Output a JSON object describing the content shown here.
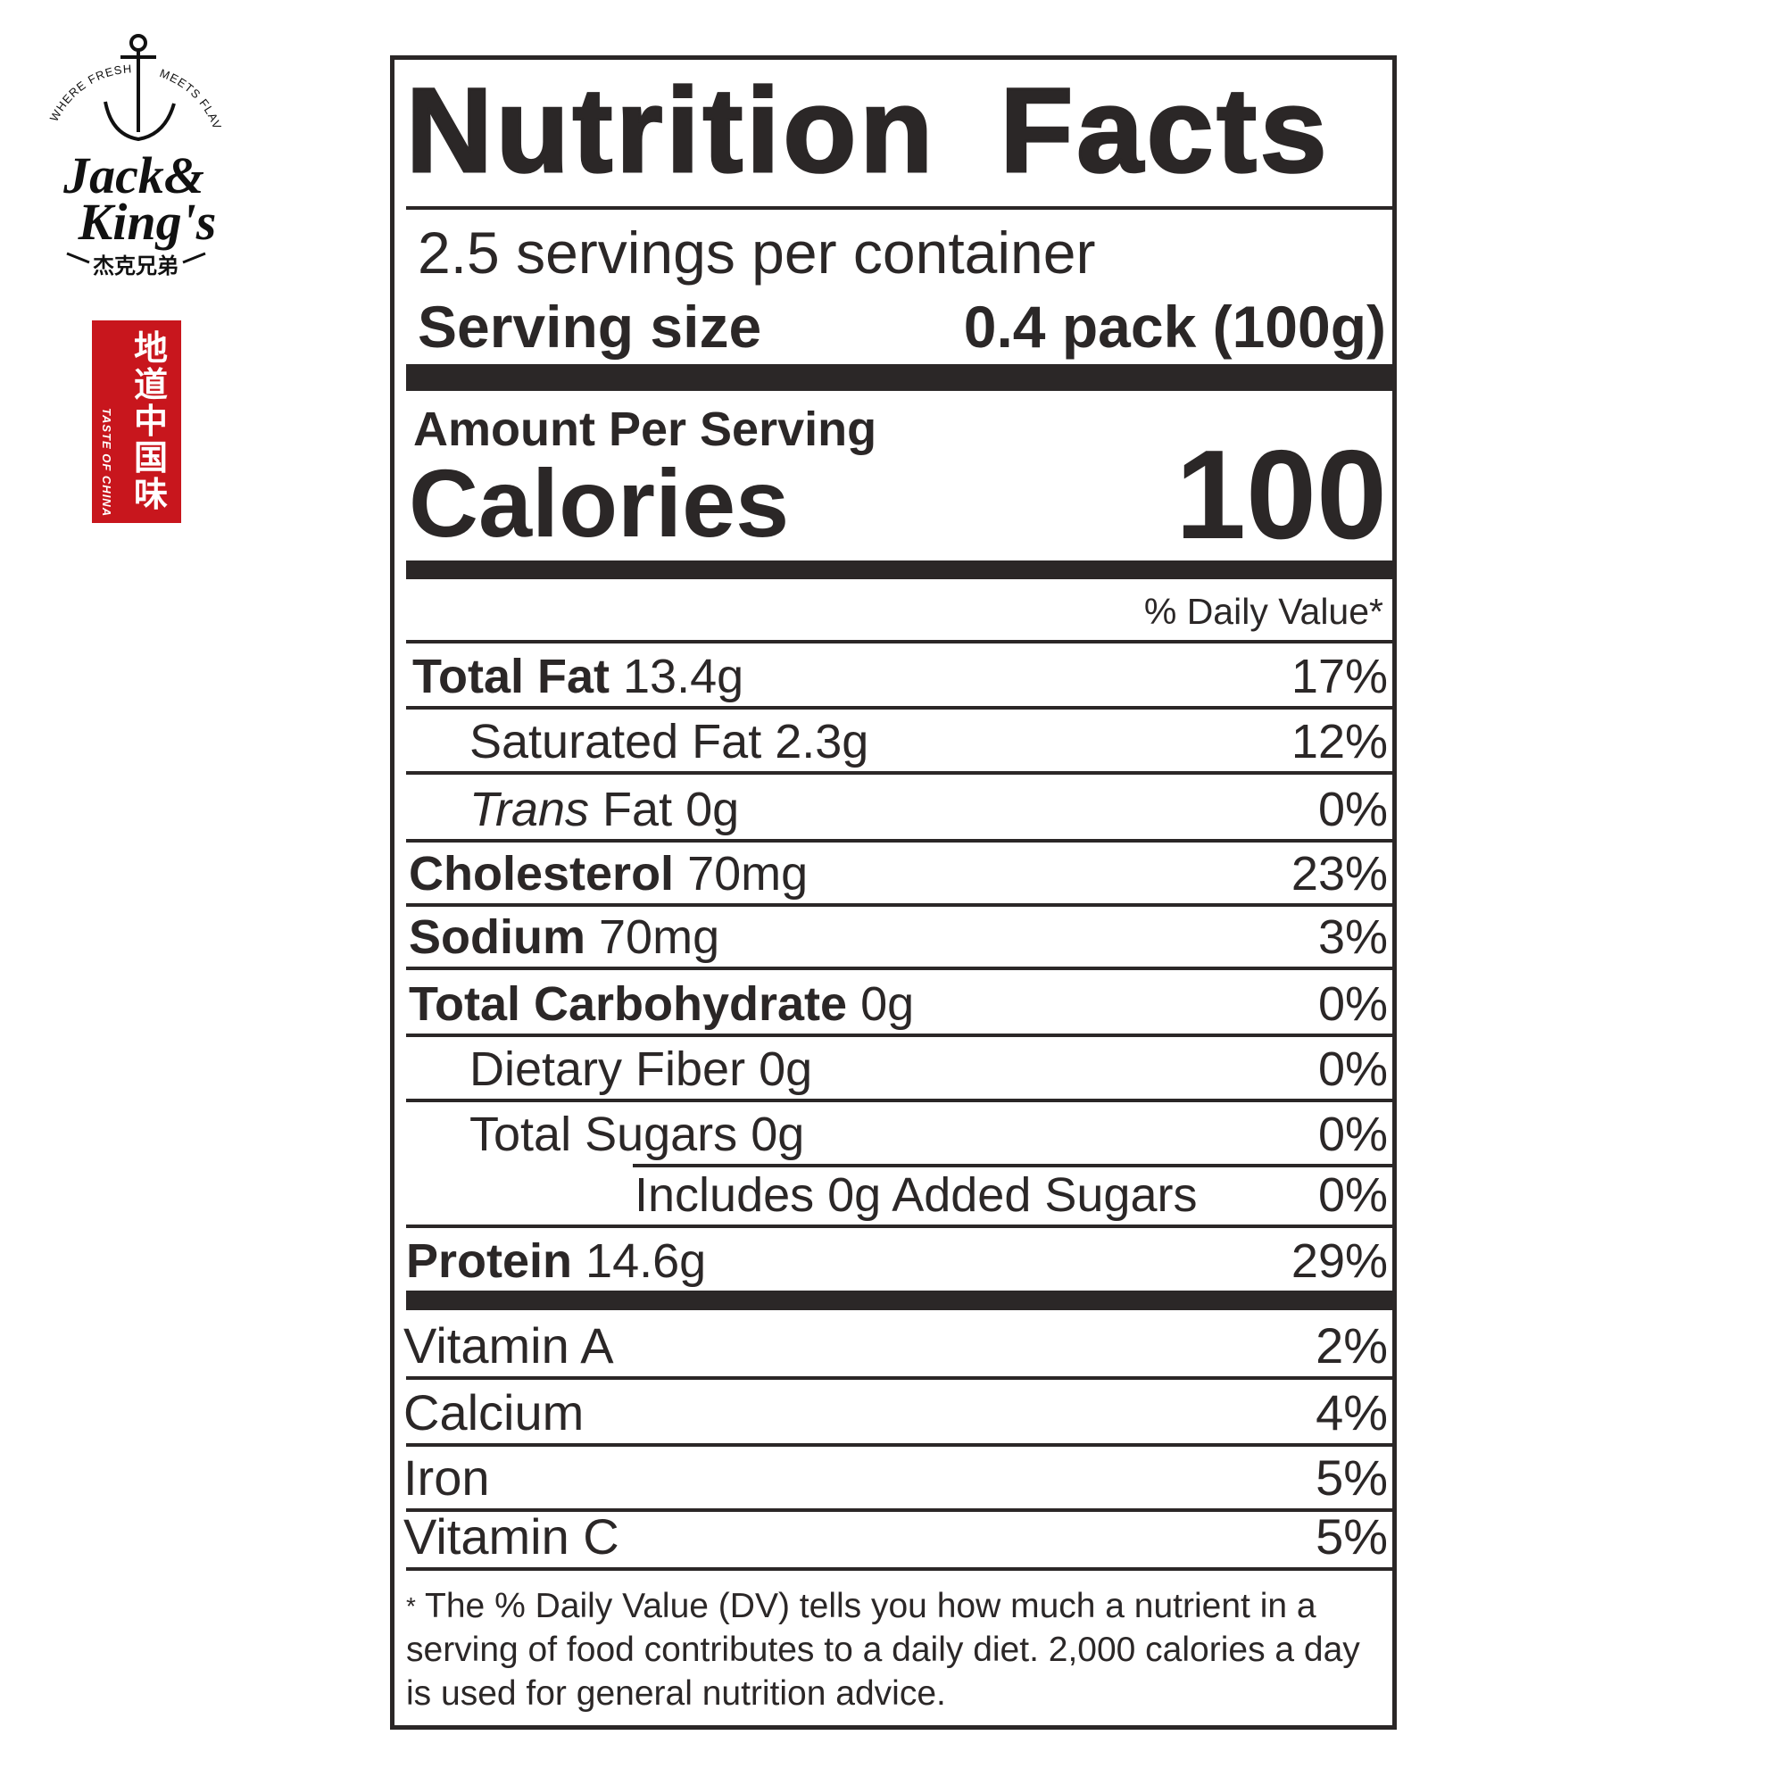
{
  "brand": {
    "name": "Jack & King's",
    "tagline": "WHERE FRESH MEETS FLAVOR",
    "chinese_name": "杰克兄弟",
    "seal_text": "地道中国味",
    "seal_subtext": "TASTE OF CHINA",
    "seal_color": "#c8161d"
  },
  "label": {
    "title": "Nutrition Facts",
    "servings_per_container": "2.5 servings per container",
    "serving_size_label": "Serving size",
    "serving_size_value": "0.4 pack (100g)",
    "amount_per_serving": "Amount Per Serving",
    "calories_label": "Calories",
    "calories_value": "100",
    "daily_value_header": "% Daily Value*",
    "nutrients": [
      {
        "bold": "Total Fat",
        "amount": "13.4g",
        "dv": "17%"
      },
      {
        "bold": "",
        "name": "Saturated Fat",
        "amount": "2.3g",
        "dv": "12%"
      },
      {
        "italic": "Trans",
        "name": "Fat",
        "amount": "0g",
        "dv": "0%"
      },
      {
        "bold": "Cholesterol",
        "amount": "70mg",
        "dv": "23%"
      },
      {
        "bold": "Sodium",
        "amount": "70mg",
        "dv": "3%"
      },
      {
        "bold": "Total Carbohydrate",
        "amount": "0g",
        "dv": "0%"
      },
      {
        "name": "Dietary Fiber",
        "amount": "0g",
        "dv": "0%"
      },
      {
        "name": "Total Sugars",
        "amount": "0g",
        "dv": "0%"
      },
      {
        "name": "Includes 0g Added Sugars",
        "amount": "",
        "dv": "0%"
      },
      {
        "bold": "Protein",
        "amount": "14.6g",
        "dv": "29%"
      }
    ],
    "vitamins": [
      {
        "name": "Vitamin A",
        "dv": "2%"
      },
      {
        "name": "Calcium",
        "dv": "4%"
      },
      {
        "name": "Iron",
        "dv": "5%"
      },
      {
        "name": "Vitamin C",
        "dv": "5%"
      }
    ],
    "footnote_star": "*",
    "footnote": "The % Daily Value (DV) tells you how much a nutrient in a serving of food contributes to a daily diet. 2,000 calories a day is used for general nutrition advice."
  }
}
